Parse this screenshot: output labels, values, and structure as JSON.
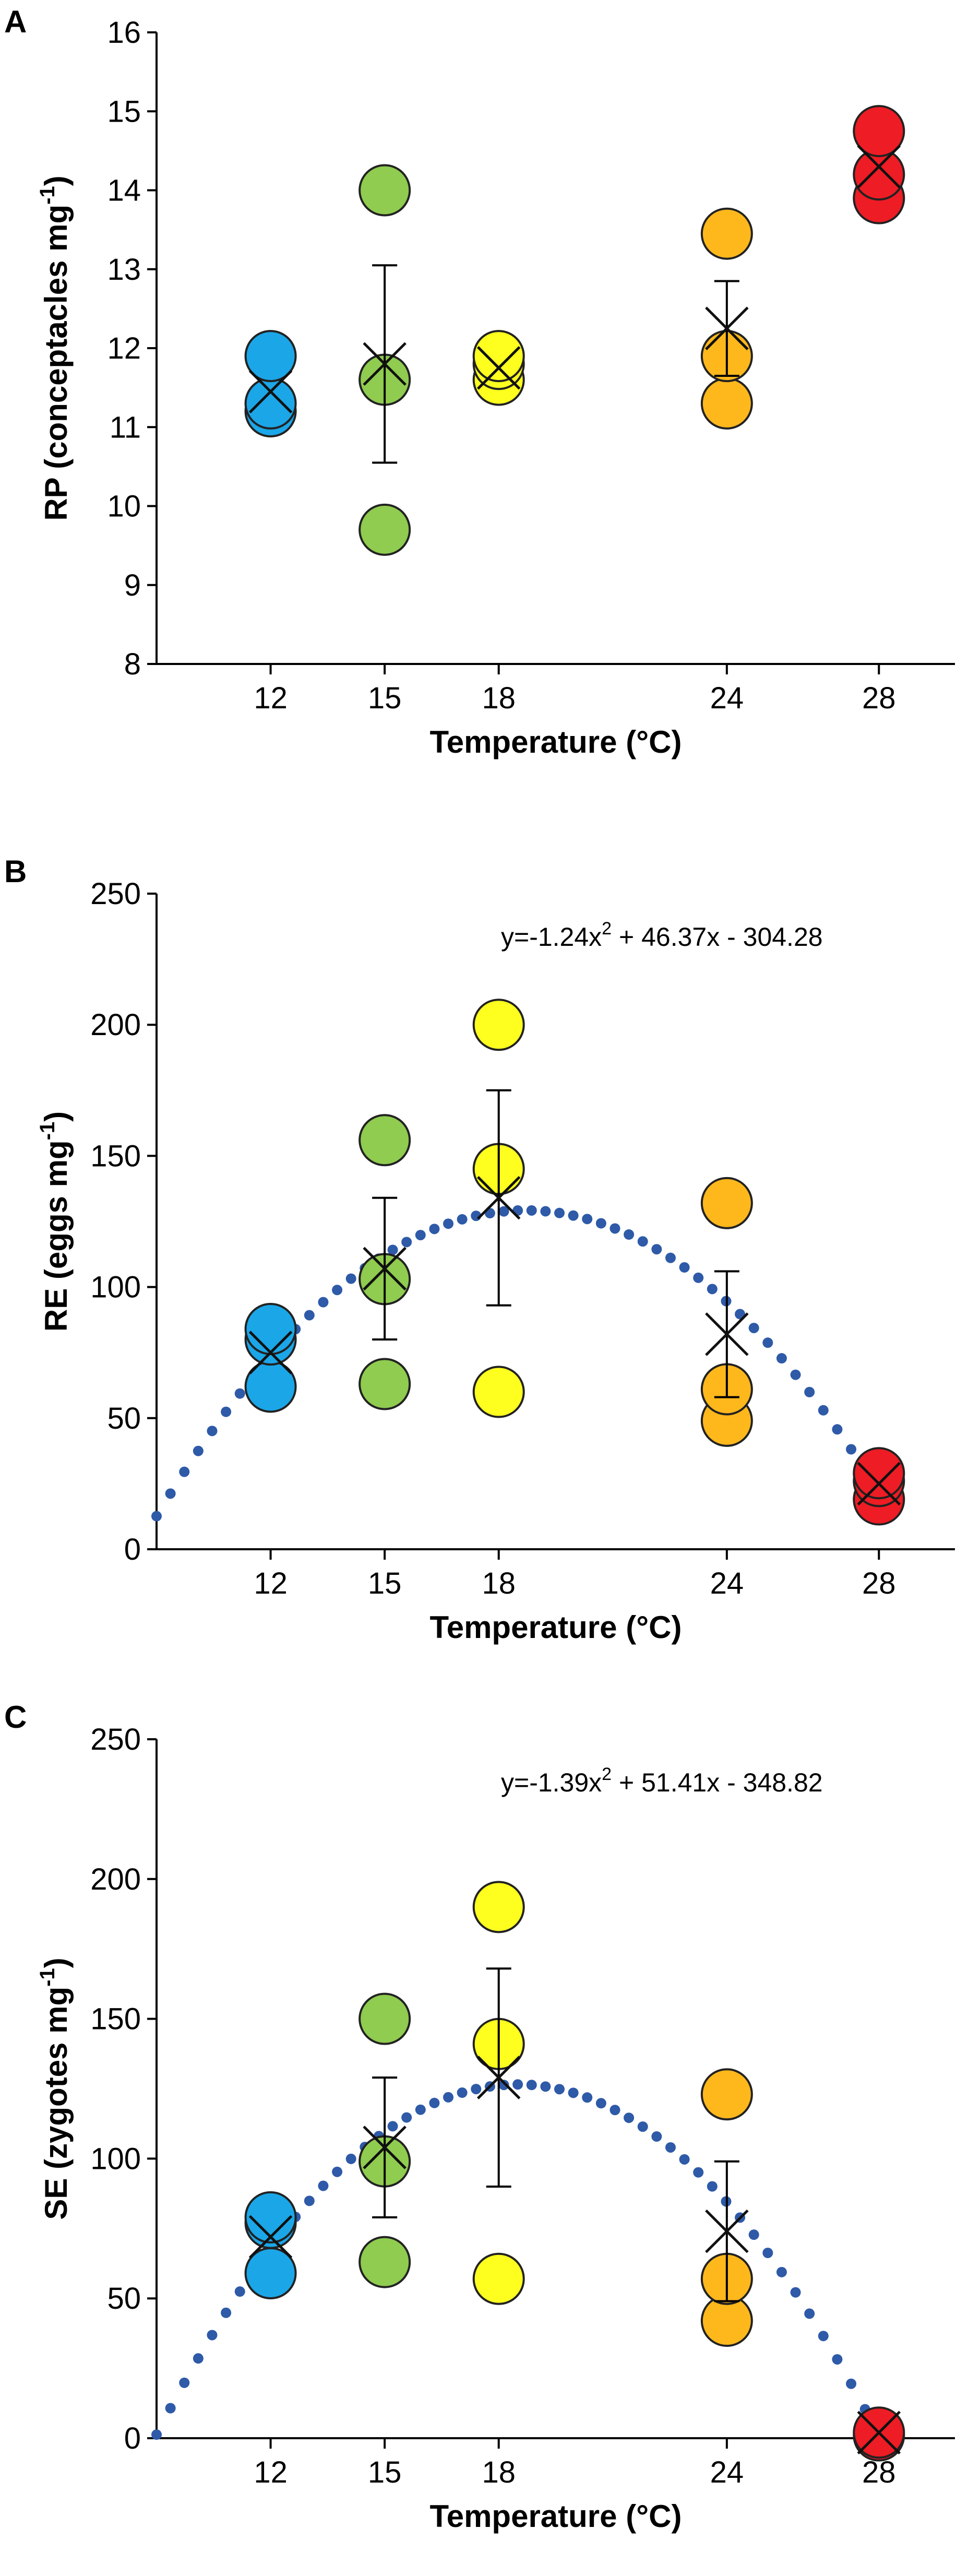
{
  "chart_data": [
    {
      "panel": "A",
      "type": "scatter",
      "xlabel": "Temperature (°C)",
      "ylabel": "RP (conceptacles mg",
      "ylabel_sup": "-1",
      "ylabel_close": ")",
      "x_ticks": [
        12,
        15,
        18,
        24,
        28
      ],
      "xlim": [
        9,
        30
      ],
      "ylim": [
        8,
        16
      ],
      "y_ticks": [
        8,
        9,
        10,
        11,
        12,
        13,
        14,
        15,
        16
      ],
      "groups": [
        {
          "temperature": 12,
          "color": "#1ba6e8",
          "points": [
            11.2,
            11.3,
            11.9
          ],
          "mean": 11.45,
          "err": 0
        },
        {
          "temperature": 15,
          "color": "#8fcc4f",
          "points": [
            9.7,
            11.6,
            14.0
          ],
          "mean": 11.8,
          "err": 1.25
        },
        {
          "temperature": 18,
          "color": "#ffff1f",
          "points": [
            11.6,
            11.8,
            11.9
          ],
          "mean": 11.75,
          "err": 0
        },
        {
          "temperature": 24,
          "color": "#ffb81c",
          "points": [
            11.3,
            11.9,
            13.45
          ],
          "mean": 12.25,
          "err": 0.6
        },
        {
          "temperature": 28,
          "color": "#ee1c24",
          "points": [
            13.9,
            14.2,
            14.75
          ],
          "mean": 14.3,
          "err": 0
        }
      ]
    },
    {
      "panel": "B",
      "type": "scatter",
      "xlabel": "Temperature (°C)",
      "ylabel": "RE (eggs mg",
      "ylabel_sup": "-1",
      "ylabel_close": ")",
      "x_ticks": [
        12,
        15,
        18,
        24,
        28
      ],
      "xlim": [
        9,
        30
      ],
      "ylim": [
        0,
        250
      ],
      "y_ticks": [
        0,
        50,
        100,
        150,
        200,
        250
      ],
      "fit": {
        "a": -1.24,
        "b": 46.37,
        "c": -304.28
      },
      "equation": {
        "lead": "y=-1.24x",
        "sup": "2",
        "rest": " + 46.37x - 304.28"
      },
      "groups": [
        {
          "temperature": 12,
          "color": "#1ba6e8",
          "points": [
            62,
            80,
            84
          ],
          "mean": 75,
          "err": 0
        },
        {
          "temperature": 15,
          "color": "#8fcc4f",
          "points": [
            63,
            103,
            156
          ],
          "mean": 107,
          "err": 27
        },
        {
          "temperature": 18,
          "color": "#ffff1f",
          "points": [
            60,
            145,
            200
          ],
          "mean": 134,
          "err": 41
        },
        {
          "temperature": 24,
          "color": "#ffb81c",
          "points": [
            49,
            61,
            132
          ],
          "mean": 82,
          "err": 24
        },
        {
          "temperature": 28,
          "color": "#ee1c24",
          "points": [
            19,
            26,
            29
          ],
          "mean": 25,
          "err": 0
        }
      ]
    },
    {
      "panel": "C",
      "type": "scatter",
      "xlabel": "Temperature (°C)",
      "ylabel": "SE (zygotes mg",
      "ylabel_sup": "-1",
      "ylabel_close": ")",
      "x_ticks": [
        12,
        15,
        18,
        24,
        28
      ],
      "xlim": [
        9,
        30
      ],
      "ylim": [
        0,
        250
      ],
      "y_ticks": [
        0,
        50,
        100,
        150,
        200,
        250
      ],
      "fit": {
        "a": -1.39,
        "b": 51.41,
        "c": -348.82
      },
      "equation": {
        "lead": "y=-1.39x",
        "sup": "2",
        "rest": " + 51.41x - 348.82"
      },
      "groups": [
        {
          "temperature": 12,
          "color": "#1ba6e8",
          "points": [
            59,
            77,
            79
          ],
          "mean": 72,
          "err": 0
        },
        {
          "temperature": 15,
          "color": "#8fcc4f",
          "points": [
            63,
            99,
            150
          ],
          "mean": 104,
          "err": 25
        },
        {
          "temperature": 18,
          "color": "#ffff1f",
          "points": [
            57,
            141,
            190
          ],
          "mean": 129,
          "err": 39
        },
        {
          "temperature": 24,
          "color": "#ffb81c",
          "points": [
            42,
            57,
            123
          ],
          "mean": 74,
          "err": 25
        },
        {
          "temperature": 28,
          "color": "#ee1c24",
          "points": [
            1,
            2
          ],
          "mean": 2,
          "err": 0
        }
      ]
    }
  ]
}
